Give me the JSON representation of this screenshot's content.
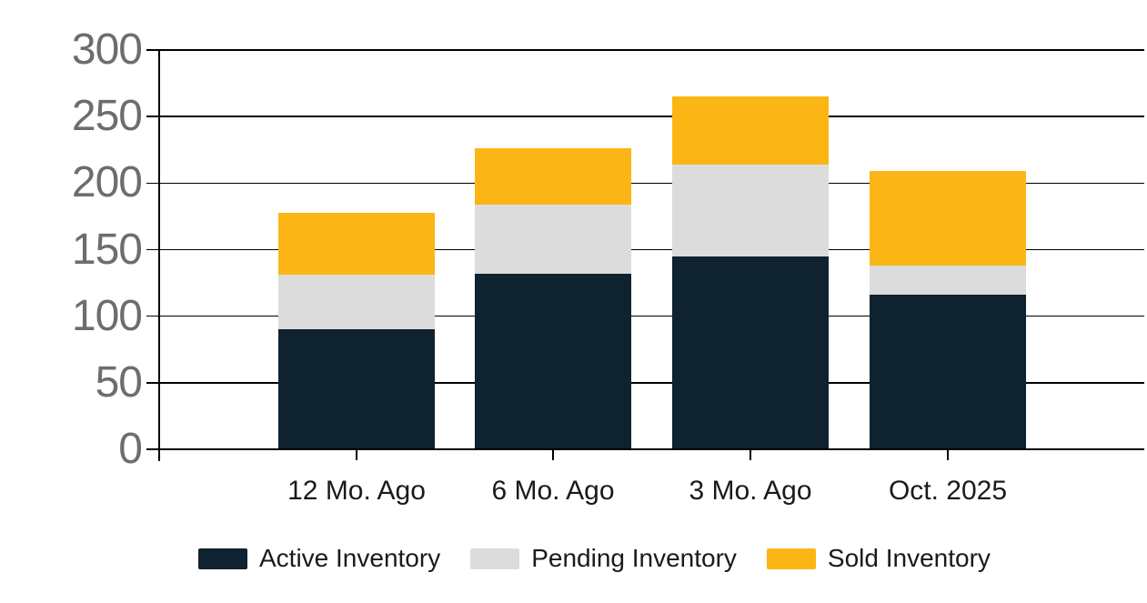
{
  "chart_data": {
    "type": "bar",
    "stacked": true,
    "title": "",
    "categories": [
      "12 Mo. Ago",
      "6 Mo. Ago",
      "3 Mo. Ago",
      "Oct. 2025"
    ],
    "series": [
      {
        "name": "Active Inventory",
        "color": "#0e222f",
        "values": [
          90,
          132,
          145,
          116
        ]
      },
      {
        "name": "Pending Inventory",
        "color": "#dcdcdc",
        "values": [
          41,
          52,
          69,
          22
        ]
      },
      {
        "name": "Sold Inventory",
        "color": "#fbb616",
        "values": [
          47,
          42,
          51,
          71
        ]
      }
    ],
    "stack_totals": [
      178,
      226,
      265,
      209
    ],
    "y_axis": {
      "min": 0,
      "max": 300,
      "tick_step": 50,
      "tick_labels": [
        "0",
        "50",
        "100",
        "150",
        "200",
        "250",
        "300"
      ],
      "label_color": "#6d6d6d"
    },
    "x_axis": {
      "label_color": "#1a1a1a"
    },
    "grid": "horizontal",
    "grid_color": "#000000",
    "legend_position": "bottom",
    "background": "#ffffff"
  }
}
